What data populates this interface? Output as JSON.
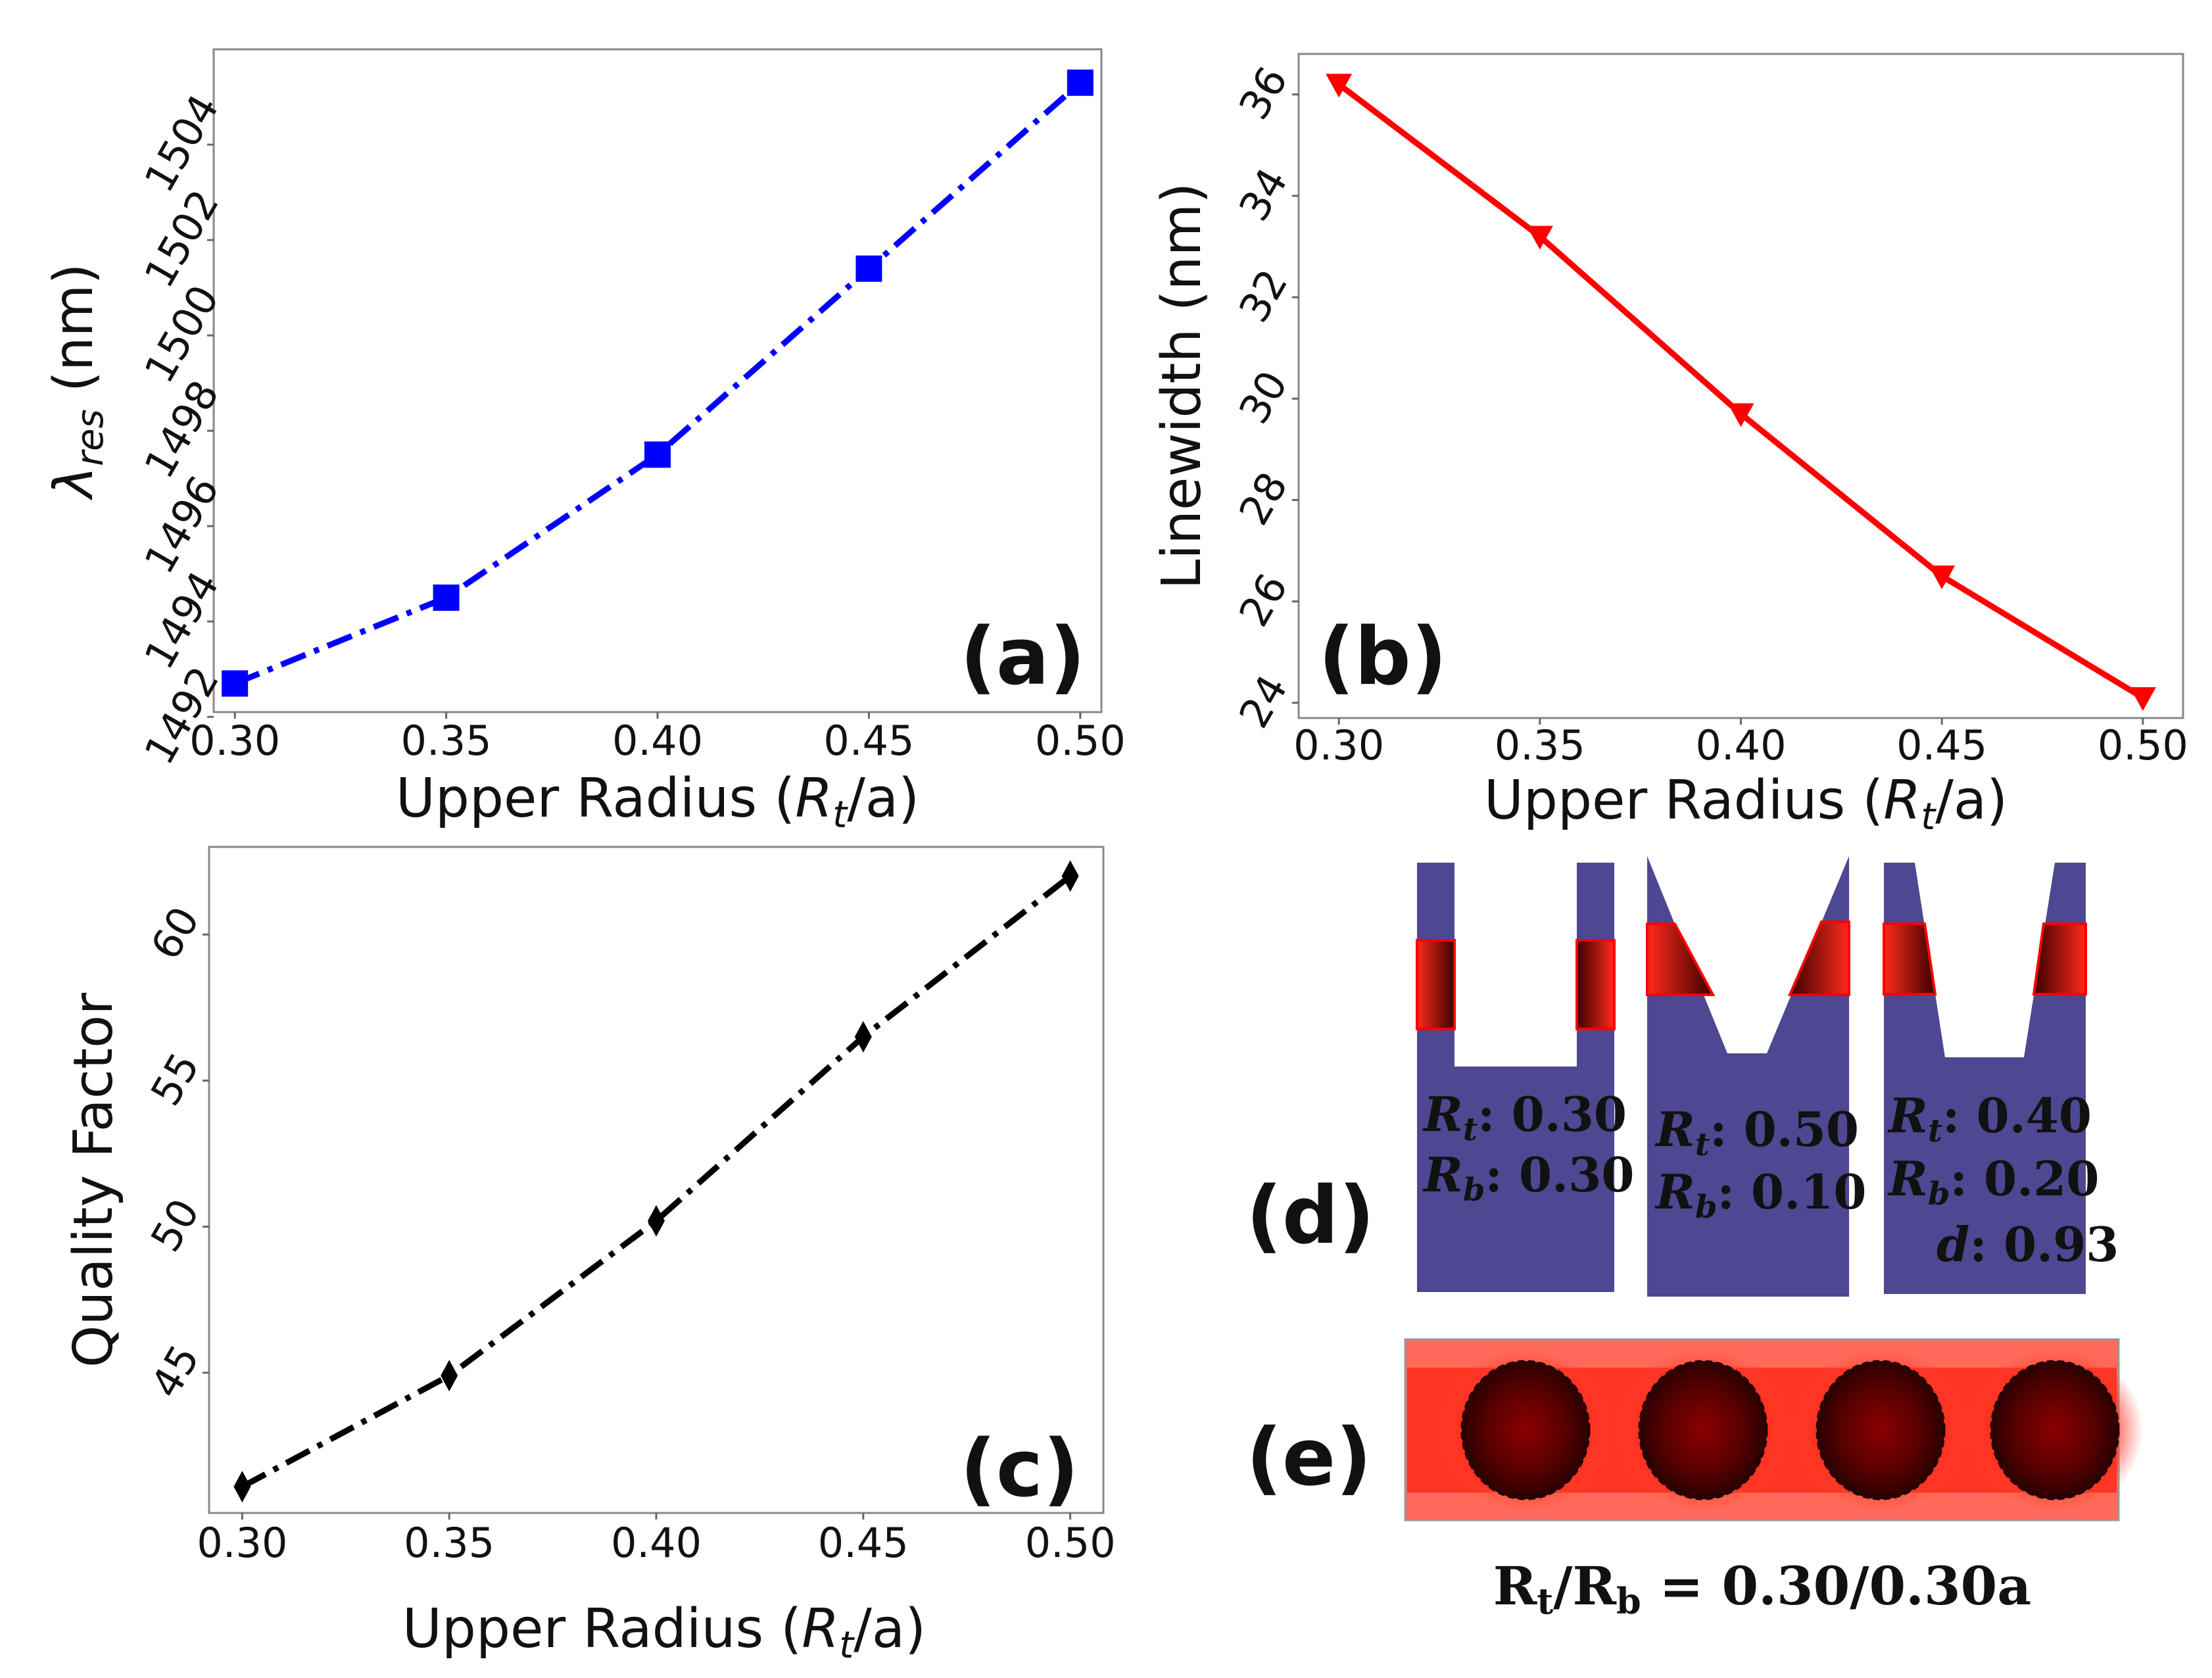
{
  "colors": {
    "series_a": "#0000ff",
    "series_b": "#ff0000",
    "series_c": "#000000",
    "cell_fill": "#4e4791",
    "field_red": "#ff2a1a",
    "field_dark": "#3a0000"
  },
  "chart_data": [
    {
      "panel": "(a)",
      "type": "line",
      "xlabel": "Upper Radius (R_t/a)",
      "xlabel_parts": {
        "pre": "Upper Radius (",
        "var": "R",
        "sub": "t",
        "post": "/a)"
      },
      "ylabel": "λres (nm)",
      "ylabel_parts": {
        "var": "λ",
        "sub": "res",
        "post": " (nm)"
      },
      "x_ticks": [
        "0.30",
        "0.35",
        "0.40",
        "0.45",
        "0.50"
      ],
      "y_ticks": [
        "1492",
        "1494",
        "1496",
        "1498",
        "1500",
        "1502",
        "1504"
      ],
      "xlim": [
        0.295,
        0.505
      ],
      "ylim": [
        1492.1,
        1506.0
      ],
      "line_style": "dash-dot",
      "marker": "square",
      "color": "#0000ff",
      "x": [
        0.3,
        0.35,
        0.4,
        0.45,
        0.5
      ],
      "y": [
        1492.7,
        1494.5,
        1497.5,
        1501.4,
        1505.3
      ]
    },
    {
      "panel": "(b)",
      "type": "line",
      "xlabel": "Upper Radius (R_t/a)",
      "xlabel_parts": {
        "pre": "Upper Radius (",
        "var": "R",
        "sub": "t",
        "post": "/a)"
      },
      "ylabel": "Linewidth (nm)",
      "x_ticks": [
        "0.30",
        "0.35",
        "0.40",
        "0.45",
        "0.50"
      ],
      "y_ticks": [
        "24",
        "26",
        "28",
        "30",
        "32",
        "34",
        "36"
      ],
      "xlim": [
        0.29,
        0.51
      ],
      "ylim": [
        23.7,
        36.8
      ],
      "line_style": "solid",
      "marker": "triangle-down",
      "color": "#ff0000",
      "x": [
        0.3,
        0.35,
        0.4,
        0.45,
        0.5
      ],
      "y": [
        36.2,
        33.2,
        29.7,
        26.5,
        24.1
      ]
    },
    {
      "panel": "(c)",
      "type": "line",
      "xlabel": "Upper Radius (R_t/a)",
      "xlabel_parts": {
        "pre": "Upper Radius (",
        "var": "R",
        "sub": "t",
        "post": "/a)"
      },
      "ylabel": "Quality Factor",
      "x_ticks": [
        "0.30",
        "0.35",
        "0.40",
        "0.45",
        "0.50"
      ],
      "y_ticks": [
        "45",
        "50",
        "55",
        "60"
      ],
      "xlim": [
        0.292,
        0.508
      ],
      "ylim": [
        40.2,
        63.0
      ],
      "line_style": "dash-dot",
      "marker": "diamond",
      "color": "#000000",
      "x": [
        0.3,
        0.35,
        0.4,
        0.45,
        0.5
      ],
      "y": [
        41.1,
        44.9,
        50.2,
        56.5,
        62.0
      ]
    }
  ],
  "panel_d": {
    "label": "(d)",
    "cells": [
      {
        "lines": [
          {
            "var": "R",
            "sub": "t",
            "val": ": 0.30"
          },
          {
            "var": "R",
            "sub": "b",
            "val": ": 0.30"
          }
        ]
      },
      {
        "lines": [
          {
            "var": "R",
            "sub": "t",
            "val": ": 0.50"
          },
          {
            "var": "R",
            "sub": "b",
            "val": ": 0.10"
          }
        ]
      },
      {
        "lines": [
          {
            "var": "R",
            "sub": "t",
            "val": ": 0.40"
          },
          {
            "var": "R",
            "sub": "b",
            "val": ": 0.20"
          },
          {
            "var": "d",
            "sub": "",
            "val": ": 0.93"
          }
        ]
      }
    ]
  },
  "panel_e": {
    "label": "(e)",
    "caption": {
      "pre": "R",
      "sub1": "t",
      "mid": "/R",
      "sub2": "b",
      "post": " = 0.30/0.30a"
    }
  }
}
